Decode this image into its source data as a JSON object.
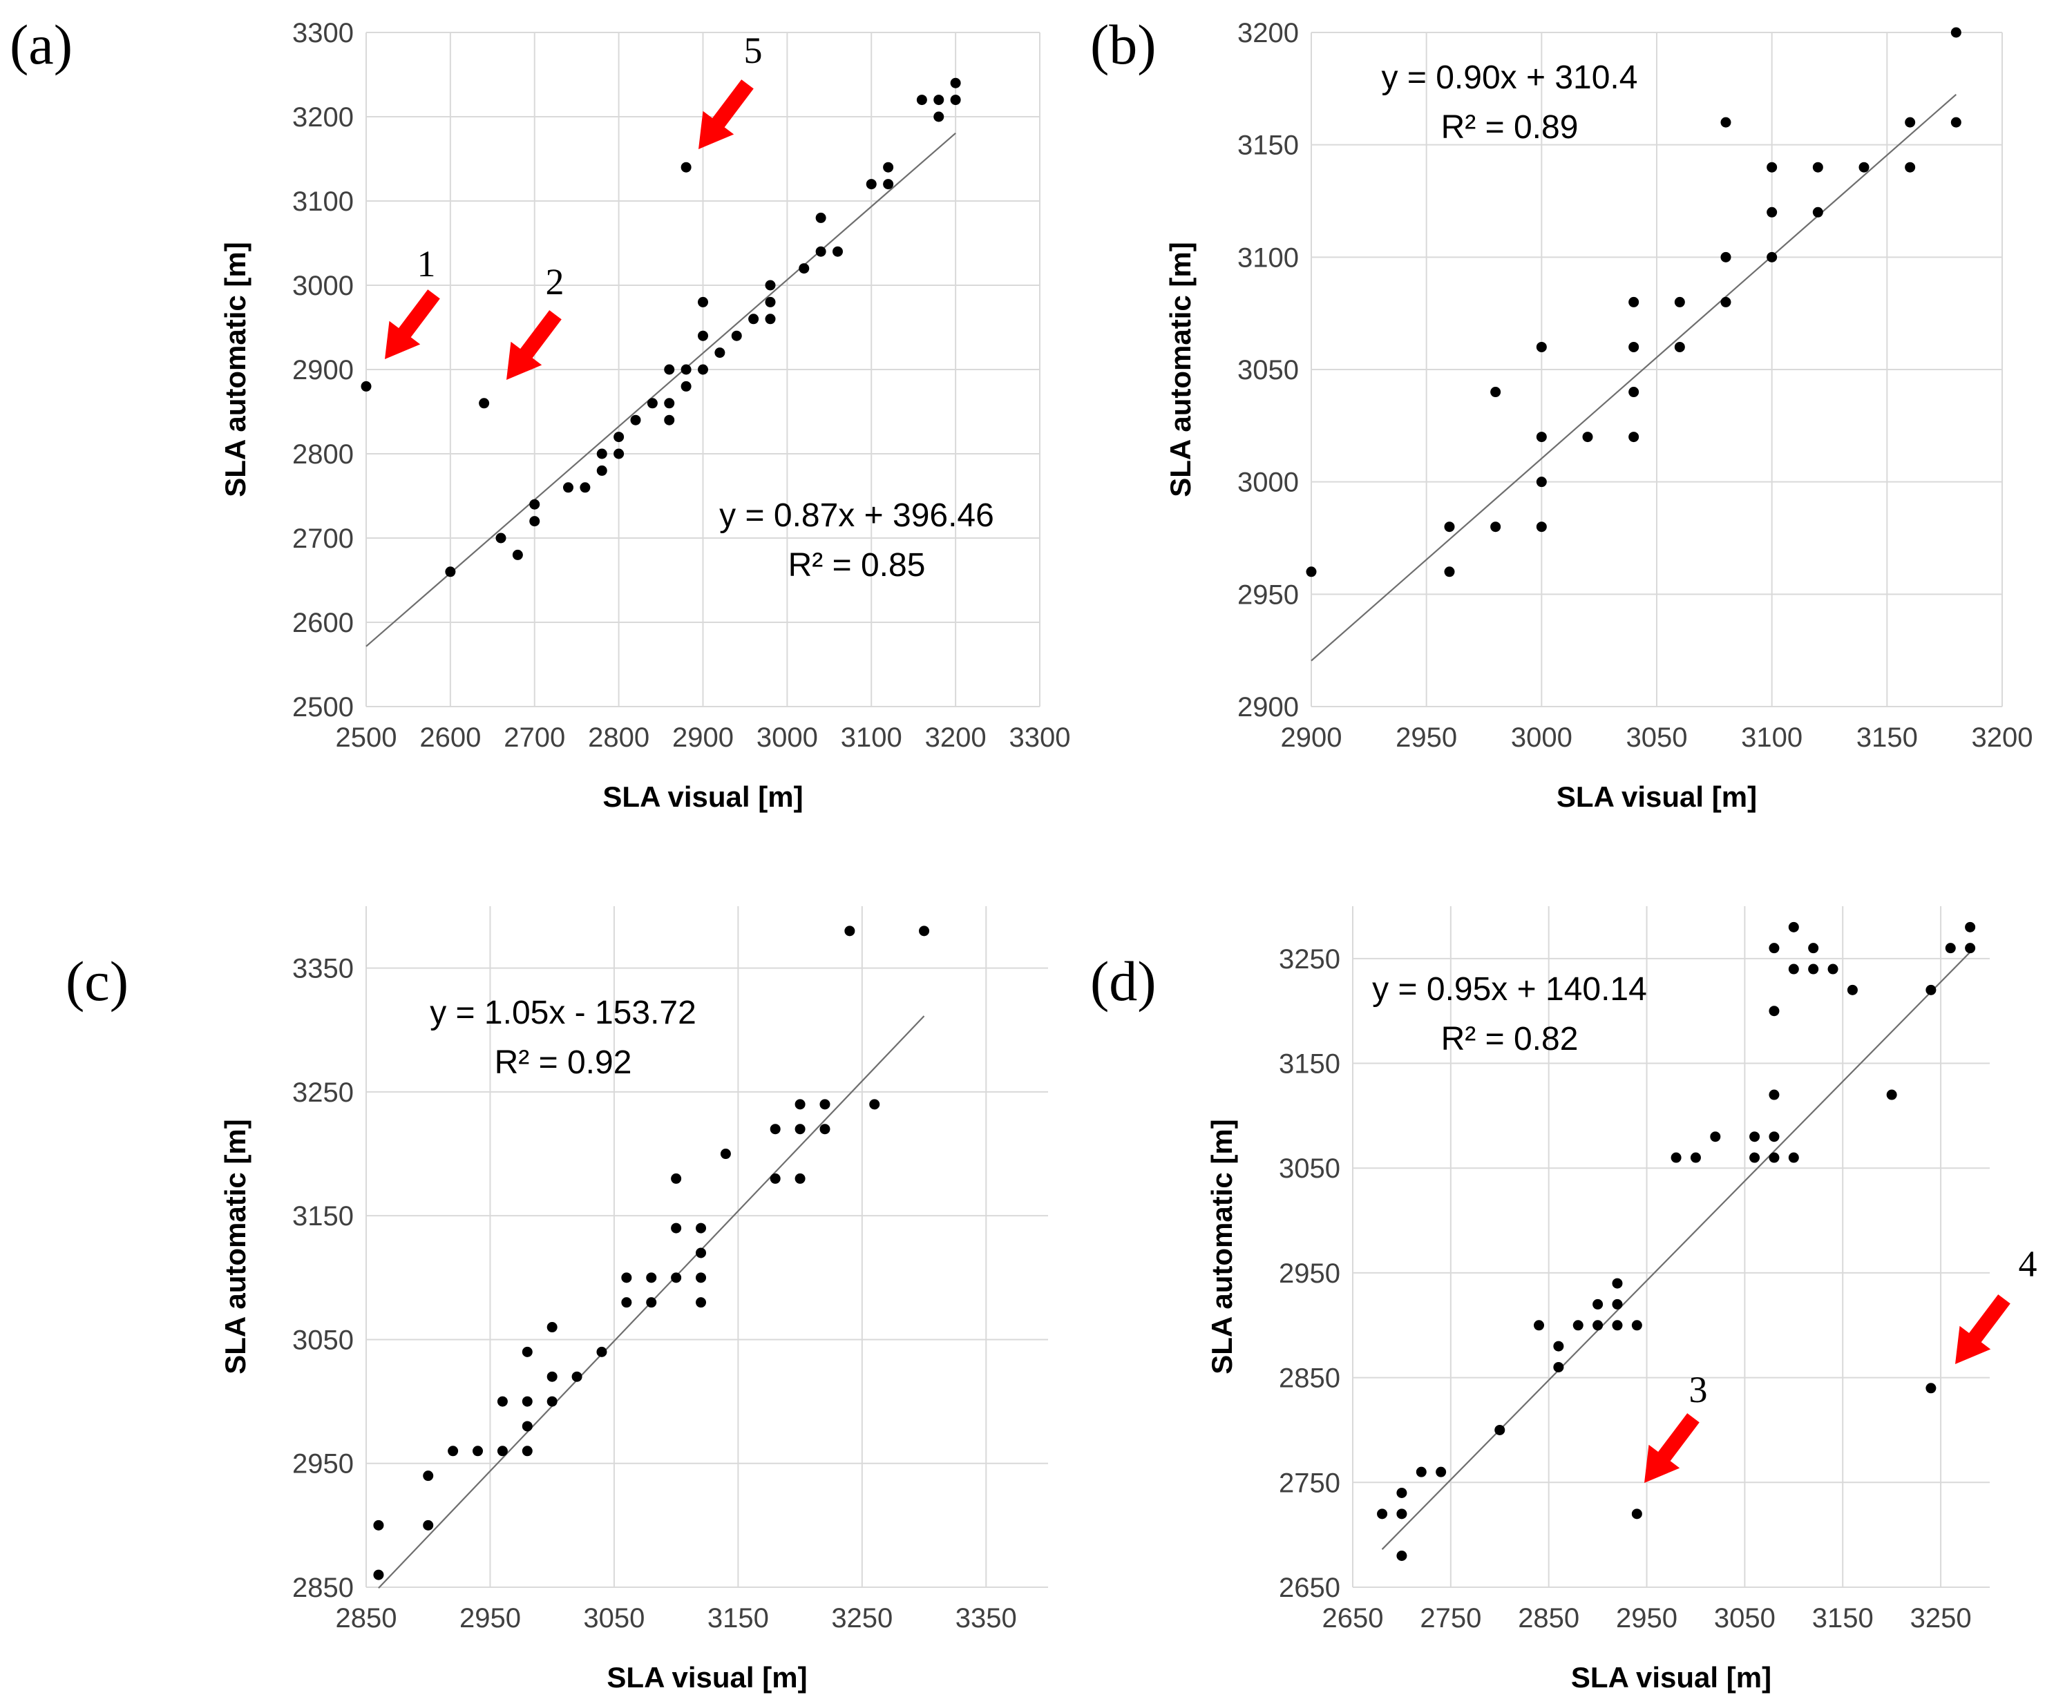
{
  "chart_data": [
    {
      "id": "a",
      "type": "scatter",
      "panel_label": "(a)",
      "xlabel": "SLA visual [m]",
      "ylabel": "SLA automatic [m]",
      "xlim": [
        2500,
        3300
      ],
      "ylim": [
        2500,
        3300
      ],
      "xticks": [
        2500,
        2600,
        2700,
        2800,
        2900,
        3000,
        3100,
        3200,
        3300
      ],
      "yticks": [
        2500,
        2600,
        2700,
        2800,
        2900,
        3000,
        3100,
        3200,
        3300
      ],
      "xtick_labels": [
        "2500",
        "2600",
        "2700",
        "2800",
        "2900",
        "3000",
        "3100",
        "3200",
        "3300"
      ],
      "ytick_labels": [
        "2500",
        "2600",
        "2700",
        "2800",
        "2900",
        "3000",
        "3100",
        "3200",
        "3300"
      ],
      "grid": true,
      "trendline": {
        "slope": 0.87,
        "intercept": 396.46,
        "x_range": [
          2500,
          3200
        ]
      },
      "equation": "y = 0.87x + 396.46",
      "r2": "R² = 0.85",
      "points": [
        [
          2500,
          2880
        ],
        [
          2600,
          2660
        ],
        [
          2640,
          2860
        ],
        [
          2660,
          2700
        ],
        [
          2680,
          2680
        ],
        [
          2700,
          2740
        ],
        [
          2700,
          2720
        ],
        [
          2740,
          2760
        ],
        [
          2760,
          2760
        ],
        [
          2780,
          2800
        ],
        [
          2780,
          2780
        ],
        [
          2800,
          2820
        ],
        [
          2800,
          2800
        ],
        [
          2820,
          2840
        ],
        [
          2840,
          2860
        ],
        [
          2860,
          2900
        ],
        [
          2860,
          2860
        ],
        [
          2860,
          2840
        ],
        [
          2880,
          2900
        ],
        [
          2880,
          2880
        ],
        [
          2880,
          3140
        ],
        [
          2900,
          2980
        ],
        [
          2900,
          2940
        ],
        [
          2900,
          2900
        ],
        [
          2920,
          2920
        ],
        [
          2940,
          2940
        ],
        [
          2960,
          2960
        ],
        [
          2980,
          3000
        ],
        [
          2980,
          2980
        ],
        [
          2980,
          2960
        ],
        [
          3020,
          3020
        ],
        [
          3040,
          3080
        ],
        [
          3040,
          3040
        ],
        [
          3060,
          3040
        ],
        [
          3100,
          3120
        ],
        [
          3120,
          3140
        ],
        [
          3120,
          3120
        ],
        [
          3160,
          3220
        ],
        [
          3180,
          3220
        ],
        [
          3180,
          3200
        ],
        [
          3200,
          3240
        ],
        [
          3200,
          3220
        ]
      ],
      "outliers": [
        {
          "label": "1",
          "point": [
            2500,
            2880
          ]
        },
        {
          "label": "2",
          "point": [
            2640,
            2860
          ]
        },
        {
          "label": "5",
          "point": [
            2880,
            3140
          ]
        }
      ]
    },
    {
      "id": "b",
      "type": "scatter",
      "panel_label": "(b)",
      "xlabel": "SLA visual [m]",
      "ylabel": "SLA automatic [m]",
      "xlim": [
        2900,
        3200
      ],
      "ylim": [
        2900,
        3200
      ],
      "xticks": [
        2900,
        2950,
        3000,
        3050,
        3100,
        3150,
        3200
      ],
      "yticks": [
        2900,
        2950,
        3000,
        3050,
        3100,
        3150,
        3200
      ],
      "xtick_labels": [
        "2900",
        "2950",
        "3000",
        "3050",
        "3100",
        "3150",
        "3200"
      ],
      "ytick_labels": [
        "2900",
        "2950",
        "3000",
        "3050",
        "3100",
        "3150",
        "3200"
      ],
      "grid": true,
      "trendline": {
        "slope": 0.9,
        "intercept": 310.4,
        "x_range": [
          2900,
          3180
        ]
      },
      "equation": "y = 0.90x + 310.4",
      "r2": "R² = 0.89",
      "points": [
        [
          2900,
          2960
        ],
        [
          2960,
          2980
        ],
        [
          2960,
          2960
        ],
        [
          2980,
          3040
        ],
        [
          2980,
          2980
        ],
        [
          3000,
          3060
        ],
        [
          3000,
          3020
        ],
        [
          3000,
          3000
        ],
        [
          3000,
          2980
        ],
        [
          3020,
          3020
        ],
        [
          3040,
          3080
        ],
        [
          3040,
          3060
        ],
        [
          3040,
          3040
        ],
        [
          3040,
          3020
        ],
        [
          3060,
          3080
        ],
        [
          3060,
          3060
        ],
        [
          3080,
          3160
        ],
        [
          3080,
          3100
        ],
        [
          3080,
          3080
        ],
        [
          3100,
          3140
        ],
        [
          3100,
          3120
        ],
        [
          3100,
          3100
        ],
        [
          3120,
          3140
        ],
        [
          3120,
          3120
        ],
        [
          3140,
          3140
        ],
        [
          3160,
          3160
        ],
        [
          3160,
          3140
        ],
        [
          3180,
          3200
        ],
        [
          3180,
          3160
        ]
      ],
      "outliers": []
    },
    {
      "id": "c",
      "type": "scatter",
      "panel_label": "(c)",
      "xlabel": "SLA visual [m]",
      "ylabel": "SLA automatic [m]",
      "xlim": [
        2850,
        3400
      ],
      "ylim": [
        2850,
        3400
      ],
      "xticks": [
        2850,
        2950,
        3050,
        3150,
        3250,
        3350
      ],
      "yticks": [
        2850,
        2950,
        3050,
        3150,
        3250,
        3350
      ],
      "xtick_labels": [
        "2850",
        "2950",
        "3050",
        "3150",
        "3250",
        "3350"
      ],
      "ytick_labels": [
        "2850",
        "2950",
        "3050",
        "3150",
        "3250",
        "3350"
      ],
      "grid": true,
      "trendline": {
        "slope": 1.05,
        "intercept": -153.72,
        "x_range": [
          2860,
          3300
        ]
      },
      "equation": "y = 1.05x - 153.72",
      "r2": "R² = 0.92",
      "points": [
        [
          2860,
          2900
        ],
        [
          2860,
          2860
        ],
        [
          2900,
          2940
        ],
        [
          2900,
          2900
        ],
        [
          2920,
          2960
        ],
        [
          2940,
          2960
        ],
        [
          2960,
          3000
        ],
        [
          2960,
          2960
        ],
        [
          2980,
          3040
        ],
        [
          2980,
          3000
        ],
        [
          2980,
          2980
        ],
        [
          2980,
          2960
        ],
        [
          3000,
          3060
        ],
        [
          3000,
          3020
        ],
        [
          3000,
          3000
        ],
        [
          3020,
          3020
        ],
        [
          3040,
          3040
        ],
        [
          3060,
          3100
        ],
        [
          3060,
          3080
        ],
        [
          3080,
          3100
        ],
        [
          3080,
          3080
        ],
        [
          3100,
          3180
        ],
        [
          3100,
          3140
        ],
        [
          3100,
          3100
        ],
        [
          3120,
          3140
        ],
        [
          3120,
          3120
        ],
        [
          3120,
          3100
        ],
        [
          3120,
          3080
        ],
        [
          3140,
          3200
        ],
        [
          3180,
          3220
        ],
        [
          3180,
          3180
        ],
        [
          3200,
          3240
        ],
        [
          3200,
          3220
        ],
        [
          3200,
          3180
        ],
        [
          3220,
          3240
        ],
        [
          3220,
          3220
        ],
        [
          3240,
          3380
        ],
        [
          3260,
          3240
        ],
        [
          3300,
          3380
        ]
      ],
      "outliers": []
    },
    {
      "id": "d",
      "type": "scatter",
      "panel_label": "(d)",
      "xlabel": "SLA visual [m]",
      "ylabel": "SLA automatic [m]",
      "xlim": [
        2650,
        3300
      ],
      "ylim": [
        2650,
        3300
      ],
      "xticks": [
        2650,
        2750,
        2850,
        2950,
        3050,
        3150,
        3250
      ],
      "yticks": [
        2650,
        2750,
        2850,
        2950,
        3050,
        3150,
        3250
      ],
      "xtick_labels": [
        "2650",
        "2750",
        "2850",
        "2950",
        "3050",
        "3150",
        "3250"
      ],
      "ytick_labels": [
        "2650",
        "2750",
        "2850",
        "2950",
        "3050",
        "3150",
        "3250"
      ],
      "grid": true,
      "trendline": {
        "slope": 0.95,
        "intercept": 140.14,
        "x_range": [
          2680,
          3280
        ]
      },
      "equation": "y = 0.95x + 140.14",
      "r2": "R² = 0.82",
      "points": [
        [
          2680,
          2720
        ],
        [
          2700,
          2740
        ],
        [
          2700,
          2720
        ],
        [
          2700,
          2680
        ],
        [
          2720,
          2760
        ],
        [
          2740,
          2760
        ],
        [
          2800,
          2800
        ],
        [
          2840,
          2900
        ],
        [
          2860,
          2880
        ],
        [
          2860,
          2860
        ],
        [
          2880,
          2900
        ],
        [
          2900,
          2920
        ],
        [
          2900,
          2900
        ],
        [
          2920,
          2940
        ],
        [
          2920,
          2920
        ],
        [
          2920,
          2900
        ],
        [
          2940,
          2900
        ],
        [
          2940,
          2720
        ],
        [
          2980,
          3060
        ],
        [
          3000,
          3060
        ],
        [
          3020,
          3080
        ],
        [
          3060,
          3080
        ],
        [
          3060,
          3060
        ],
        [
          3080,
          3260
        ],
        [
          3080,
          3200
        ],
        [
          3080,
          3120
        ],
        [
          3080,
          3080
        ],
        [
          3080,
          3060
        ],
        [
          3100,
          3280
        ],
        [
          3100,
          3240
        ],
        [
          3100,
          3060
        ],
        [
          3120,
          3260
        ],
        [
          3120,
          3240
        ],
        [
          3140,
          3240
        ],
        [
          3160,
          3220
        ],
        [
          3200,
          3120
        ],
        [
          3240,
          3220
        ],
        [
          3240,
          2840
        ],
        [
          3260,
          3260
        ],
        [
          3280,
          3280
        ],
        [
          3280,
          3260
        ]
      ],
      "outliers": [
        {
          "label": "3",
          "point": [
            2940,
            2720
          ]
        },
        {
          "label": "4",
          "point": [
            3240,
            2840
          ]
        }
      ]
    }
  ]
}
